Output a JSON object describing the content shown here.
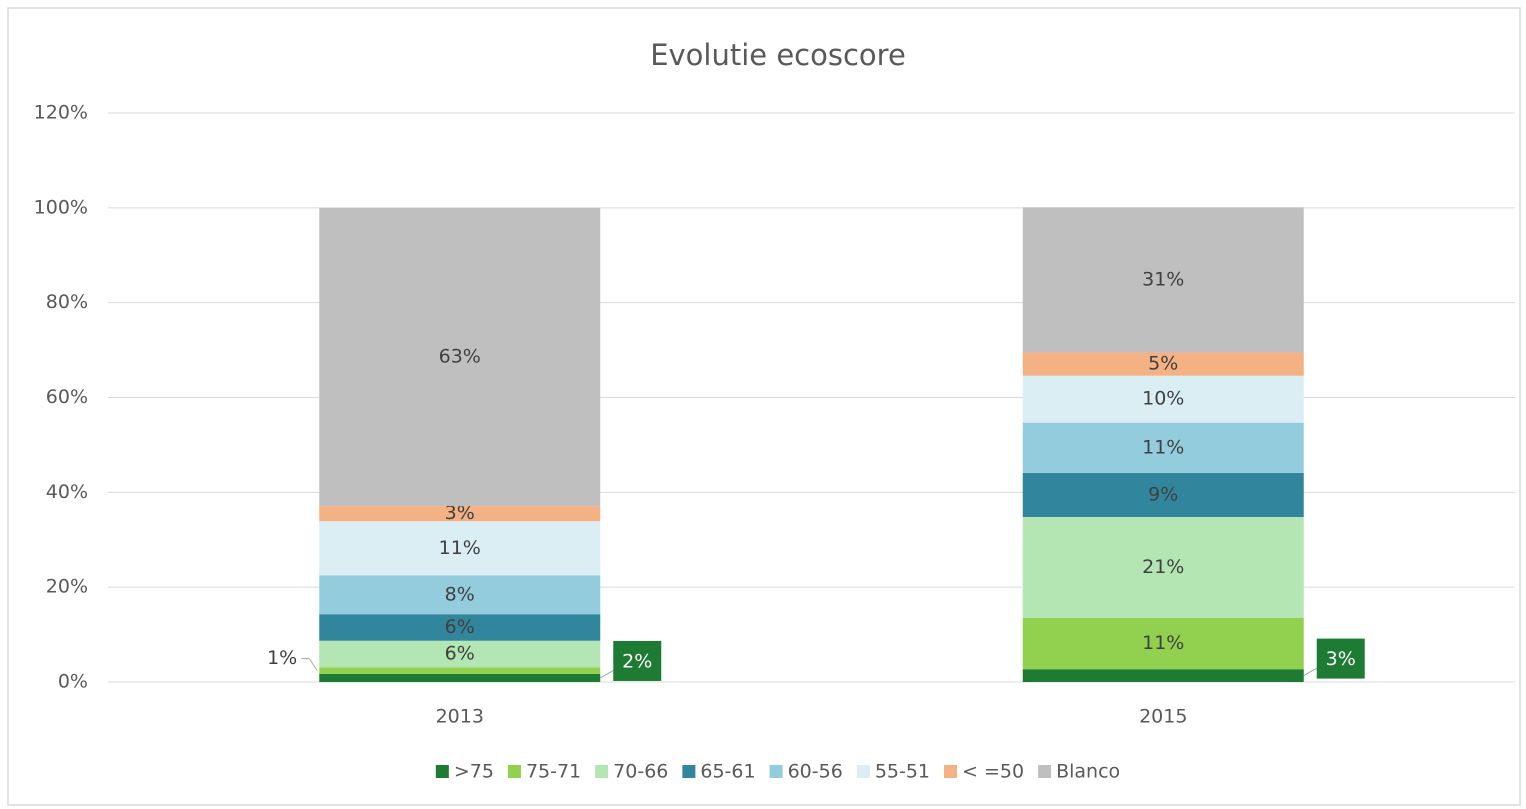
{
  "chart_data": {
    "type": "stacked_bar",
    "title": "Evolutie ecoscore",
    "categories": [
      "2013",
      "2015"
    ],
    "series": [
      {
        "name": ">75",
        "color": "#1e7b34",
        "values": [
          1.7,
          2.7
        ],
        "value_labels": [
          "2%",
          "3%"
        ]
      },
      {
        "name": "75-71",
        "color": "#92d050",
        "values": [
          1.4,
          10.8
        ],
        "value_labels": [
          "1%",
          "11%"
        ]
      },
      {
        "name": "70-66",
        "color": "#b4e6b4",
        "values": [
          5.6,
          21.3
        ],
        "value_labels": [
          "6%",
          "21%"
        ]
      },
      {
        "name": "65-61",
        "color": "#31859c",
        "values": [
          5.6,
          9.3
        ],
        "value_labels": [
          "6%",
          "9%"
        ]
      },
      {
        "name": "60-56",
        "color": "#93cddd",
        "values": [
          8.2,
          10.6
        ],
        "value_labels": [
          "8%",
          "11%"
        ]
      },
      {
        "name": "55-51",
        "color": "#dbeef4",
        "values": [
          11.4,
          9.9
        ],
        "value_labels": [
          "11%",
          "10%"
        ]
      },
      {
        "name": "< =50",
        "color": "#f4b183",
        "values": [
          3.2,
          4.9
        ],
        "value_labels": [
          "3%",
          "5%"
        ]
      },
      {
        "name": "Blanco",
        "color": "#bfbfbf",
        "values": [
          62.9,
          30.6
        ],
        "value_labels": [
          "63%",
          "31%"
        ]
      }
    ],
    "ylim": [
      0,
      120
    ],
    "yticks": [
      {
        "value": 0,
        "label": "0%"
      },
      {
        "value": 20,
        "label": "20%"
      },
      {
        "value": 40,
        "label": "40%"
      },
      {
        "value": 60,
        "label": "60%"
      },
      {
        "value": 80,
        "label": "80%"
      },
      {
        "value": 100,
        "label": "100%"
      },
      {
        "value": 120,
        "label": "120%"
      }
    ],
    "grid": true
  }
}
